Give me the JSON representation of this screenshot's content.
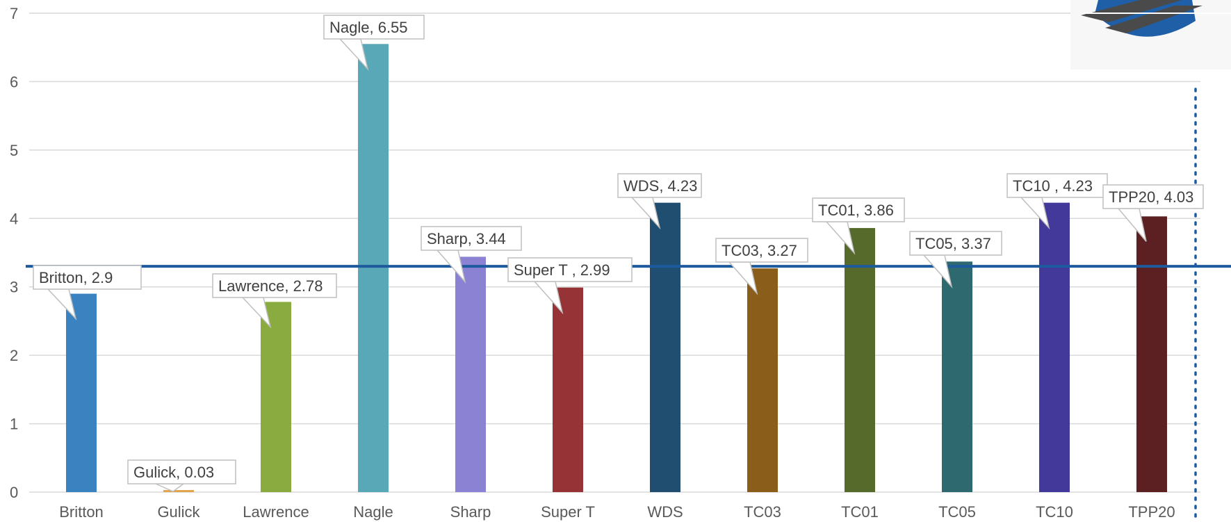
{
  "chart_data": {
    "type": "bar",
    "categories": [
      "Britton",
      "Gulick",
      "Lawrence",
      "Nagle",
      "Sharp",
      "Super T",
      "WDS",
      "TC03",
      "TC01",
      "TC05",
      "TC10",
      "TPP20"
    ],
    "values": [
      2.9,
      0.03,
      2.78,
      6.55,
      3.44,
      2.99,
      4.23,
      3.27,
      3.86,
      3.37,
      4.23,
      4.03
    ],
    "colors": [
      "#3a82c0",
      "#e3a34a",
      "#8aab40",
      "#59a8b8",
      "#8b82d3",
      "#963336",
      "#1f4e70",
      "#8a5d1b",
      "#566a2c",
      "#2e6970",
      "#43399a",
      "#5c1f22"
    ],
    "data_labels": [
      "Britton, 2.9",
      "Gulick, 0.03",
      "Lawrence, 2.78",
      "Nagle, 6.55",
      "Sharp, 3.44",
      "Super T , 2.99",
      "WDS, 4.23",
      "TC03, 3.27",
      "TC01, 3.86",
      "TC05, 3.37",
      "TC10 , 4.23",
      "TPP20, 4.03"
    ],
    "y_ticks": [
      "0",
      "1",
      "2",
      "3",
      "4",
      "5",
      "6",
      "7"
    ],
    "ylim": [
      0,
      7
    ],
    "grid": true,
    "reference_line": {
      "value": 3.3,
      "color": "#1e5a9e"
    },
    "vertical_dotted_line_color": "#1e5a9e",
    "title": "",
    "xlabel": "",
    "ylabel": ""
  },
  "logo": {
    "primary_color": "#1f5fa8",
    "secondary_color": "#4a4a4a"
  }
}
